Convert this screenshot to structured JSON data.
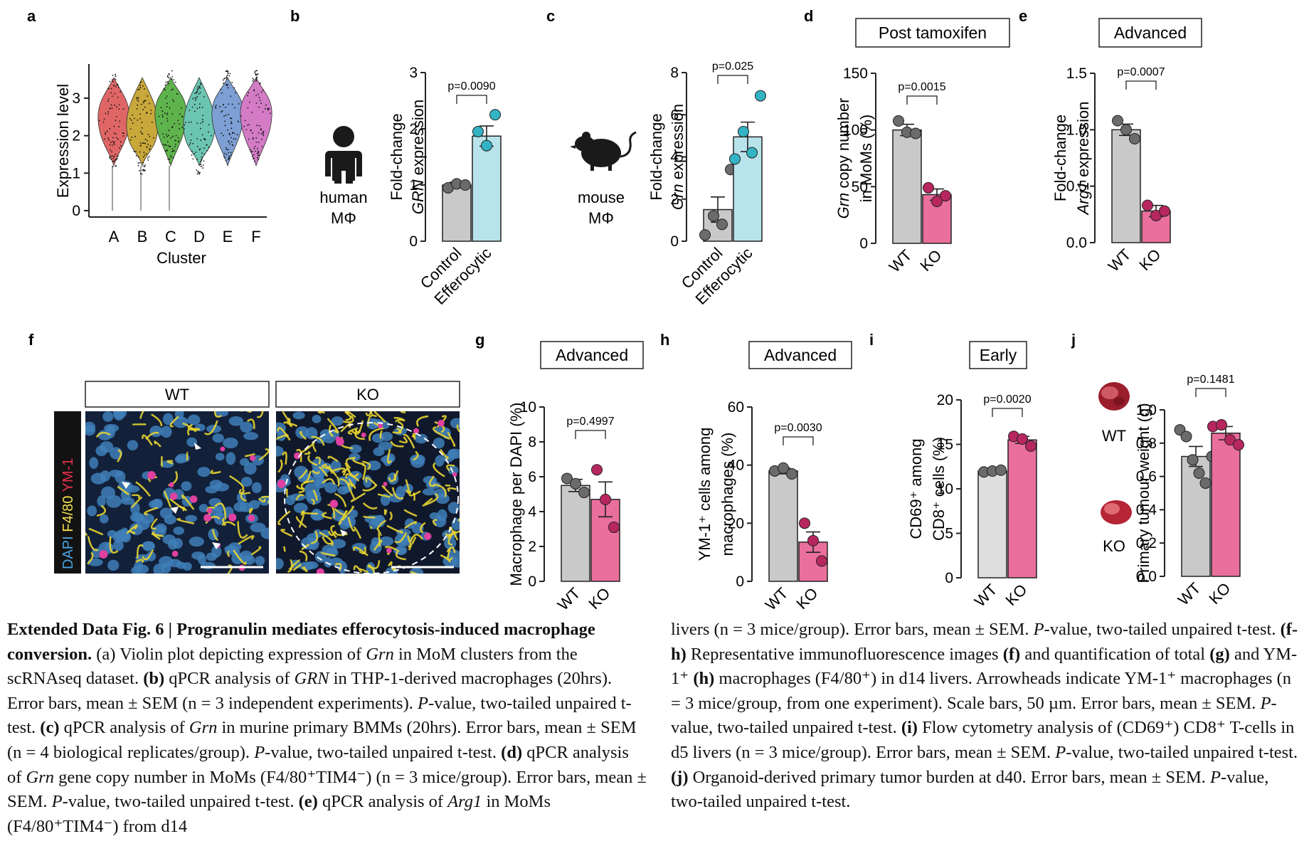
{
  "panels": {
    "a": {
      "letter": "a"
    },
    "b": {
      "letter": "b",
      "icon_label_1": "human",
      "icon_label_2": "MΦ"
    },
    "c": {
      "letter": "c",
      "icon_label_1": "mouse",
      "icon_label_2": "MΦ"
    },
    "d": {
      "letter": "d",
      "header": "Post tamoxifen"
    },
    "e": {
      "letter": "e",
      "header": "Advanced"
    },
    "f": {
      "letter": "f",
      "label_wt": "WT",
      "label_ko": "KO",
      "stain_dapi": "DAPI",
      "stain_f480": "F4/80",
      "stain_ym1": "YM-1"
    },
    "g": {
      "letter": "g",
      "header": "Advanced"
    },
    "h": {
      "letter": "h",
      "header": "Advanced"
    },
    "i": {
      "letter": "i",
      "header": "Early"
    },
    "j": {
      "letter": "j",
      "tumour_wt": "WT",
      "tumour_ko": "KO"
    }
  },
  "colors": {
    "gray_bar": "#c9c9c9",
    "gray_dot": "#6b6b6b",
    "light_gray_bar": "#dedede",
    "cyan_bar": "#b9e3ea",
    "cyan_dot": "#33b3c4",
    "pink_bar": "#ea6f9c",
    "pink_dot": "#b8265f",
    "violin_colors": [
      "#e06666",
      "#c8a83a",
      "#5fb34c",
      "#6cc4b2",
      "#7d9fd3",
      "#d47bc6"
    ]
  },
  "chart_data": [
    {
      "id": "a",
      "type": "violin",
      "categories": [
        "A",
        "B",
        "C",
        "D",
        "E",
        "F"
      ],
      "xlabel": "Cluster",
      "ylabel": "Expression level",
      "ylim": [
        0,
        3
      ],
      "yticks": [
        "0",
        "1",
        "2",
        "3"
      ],
      "medians": [
        2.4,
        2.2,
        2.5,
        2.2,
        2.5,
        2.5
      ]
    },
    {
      "id": "b",
      "type": "bar",
      "categories": [
        "Control",
        "Efferocytic"
      ],
      "values": [
        1.0,
        1.87
      ],
      "sem": [
        0.05,
        0.18
      ],
      "points": [
        [
          0.95,
          1.02,
          1.0
        ],
        [
          1.95,
          1.7,
          2.25
        ]
      ],
      "ylabel_line1": "Fold-change",
      "ylabel_gene": "GRN",
      "ylabel_rest": " expression",
      "ylim": [
        0,
        3
      ],
      "yticks": [
        "0",
        "1",
        "2",
        "3"
      ],
      "pvalue": "p=0.0090"
    },
    {
      "id": "c",
      "type": "bar",
      "categories": [
        "Control",
        "Efferocytic"
      ],
      "values": [
        1.5,
        4.95
      ],
      "sem": [
        0.6,
        0.7
      ],
      "points": [
        [
          0.3,
          1.2,
          0.8,
          3.4
        ],
        [
          3.9,
          5.2,
          4.2,
          6.9
        ]
      ],
      "ylabel_line1": "Fold-change",
      "ylabel_gene": "Grn",
      "ylabel_rest": " expression",
      "ylim": [
        0,
        8
      ],
      "yticks": [
        "0",
        "2",
        "4",
        "6",
        "8"
      ],
      "pvalue": "p=0.025"
    },
    {
      "id": "d",
      "type": "bar",
      "categories": [
        "WT",
        "KO"
      ],
      "values": [
        100,
        43
      ],
      "sem": [
        5,
        5
      ],
      "points": [
        [
          108,
          98,
          97
        ],
        [
          49,
          37,
          42
        ]
      ],
      "ylabel_line1": "Grn copy number",
      "ylabel_line2": "in MoMs (%)",
      "ylim": [
        0,
        150
      ],
      "yticks": [
        "0",
        "50",
        "100",
        "150"
      ],
      "pvalue": "p=0.0015"
    },
    {
      "id": "e",
      "type": "bar",
      "categories": [
        "WT",
        "KO"
      ],
      "values": [
        1.0,
        0.28
      ],
      "sem": [
        0.05,
        0.05
      ],
      "points": [
        [
          1.08,
          1.0,
          0.92
        ],
        [
          0.33,
          0.24,
          0.28
        ]
      ],
      "ylabel_line1": "Fold-change",
      "ylabel_gene": "Arg1",
      "ylabel_rest": " expression",
      "ylim": [
        0,
        1.5
      ],
      "yticks": [
        "0.0",
        "0.5",
        "1.0",
        "1.5"
      ],
      "pvalue": "p=0.0007"
    },
    {
      "id": "g",
      "type": "bar",
      "categories": [
        "WT",
        "KO"
      ],
      "values": [
        5.5,
        4.7
      ],
      "sem": [
        0.35,
        1.0
      ],
      "points": [
        [
          5.9,
          5.6,
          5.1
        ],
        [
          6.4,
          4.7,
          3.1
        ]
      ],
      "ylabel_line1": "Macrophage per DAPI (%)",
      "ylim": [
        0,
        10
      ],
      "yticks": [
        "0",
        "2",
        "4",
        "6",
        "8",
        "10"
      ],
      "pvalue": "p=0.4997"
    },
    {
      "id": "h",
      "type": "bar",
      "categories": [
        "WT",
        "KO"
      ],
      "values": [
        38,
        13.5
      ],
      "sem": [
        1,
        3.5
      ],
      "points": [
        [
          38,
          39,
          37
        ],
        [
          20,
          14,
          7
        ]
      ],
      "ylabel_line1": "YM-1⁺ cells among",
      "ylabel_line2": "macrophages (%)",
      "ylim": [
        0,
        60
      ],
      "yticks": [
        "0",
        "20",
        "40",
        "60"
      ],
      "pvalue": "p=0.0030"
    },
    {
      "id": "i",
      "type": "bar",
      "categories": [
        "WT",
        "KO"
      ],
      "values": [
        12,
        15.5
      ],
      "sem": [
        0.1,
        0.4
      ],
      "points": [
        [
          11.9,
          12.0,
          12.1
        ],
        [
          15.9,
          15.6,
          14.8
        ]
      ],
      "ylabel_line1": "CD69⁺ among",
      "ylabel_line2": "CD8⁺ cells (%)",
      "ylim": [
        0,
        20
      ],
      "yticks": [
        "0",
        "5",
        "10",
        "15",
        "20"
      ],
      "pvalue": "p=0.0020"
    },
    {
      "id": "j",
      "type": "bar",
      "categories": [
        "WT",
        "KO"
      ],
      "values": [
        0.72,
        0.86
      ],
      "sem": [
        0.06,
        0.04
      ],
      "points": [
        [
          0.88,
          0.84,
          0.7,
          0.62,
          0.56,
          0.72
        ],
        [
          0.9,
          0.91,
          0.82,
          0.79
        ]
      ],
      "ylabel_line1": "Primary tumour weight (g)",
      "ylim": [
        0,
        1.0
      ],
      "yticks": [
        "0.0",
        "0.2",
        "0.4",
        "0.6",
        "0.8",
        "1.0"
      ],
      "pvalue": "p=0.1481"
    }
  ],
  "caption": {
    "title": "Extended Data Fig. 6 | Progranulin mediates efferocytosis-induced macrophage conversion.",
    "left_html": "(a) Violin plot depicting expression of <i>Grn</i> in MoM clusters from the scRNAseq dataset. <b>(b)</b> qPCR analysis of <i>GRN</i> in THP-1-derived macrophages (20hrs). Error bars, mean ± SEM (n = 3 independent experiments). <i>P</i>-value, two-tailed unpaired t-test. <b>(c)</b> qPCR analysis of <i>Grn</i> in murine primary BMMs (20hrs). Error bars, mean ± SEM (n = 4 biological replicates/group). <i>P</i>-value, two-tailed unpaired t-test. <b>(d)</b> qPCR analysis of <i>Grn</i> gene copy number in MoMs (F4/80⁺TIM4⁻) (n = 3 mice/group). Error bars, mean ± SEM. <i>P</i>-value, two-tailed unpaired t-test. <b>(e)</b> qPCR analysis of <i>Arg1</i> in MoMs (F4/80⁺TIM4⁻) from d14",
    "right_html": "livers (n = 3 mice/group). Error bars, mean ± SEM. <i>P</i>-value, two-tailed unpaired t-test. <b>(f-h)</b> Representative immunofluorescence images <b>(f)</b> and quantification of total <b>(g)</b> and YM-1⁺ <b>(h)</b> macrophages (F4/80⁺) in d14 livers. Arrowheads indicate YM-1⁺ macrophages (n = 3 mice/group, from one experiment). Scale bars, 50 µm. Error bars, mean ± SEM. <i>P</i>-value, two-tailed unpaired t-test. <b>(i)</b> Flow cytometry analysis of (CD69⁺) CD8⁺ T-cells in d5 livers (n = 3 mice/group). Error bars, mean ± SEM. <i>P</i>-value, two-tailed unpaired t-test. <b>(j)</b> Organoid-derived primary tumor burden at d40. Error bars, mean ± SEM. <i>P</i>-value, two-tailed unpaired t-test."
  }
}
